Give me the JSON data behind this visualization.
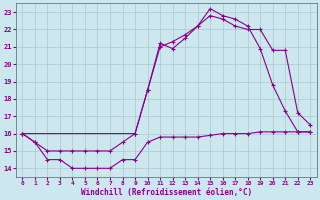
{
  "xlabel": "Windchill (Refroidissement éolien,°C)",
  "bg_color": "#cce8ee",
  "grid_color": "#aac8cc",
  "line_color": "#880088",
  "xlim": [
    -0.5,
    23.5
  ],
  "ylim": [
    13.5,
    23.5
  ],
  "yticks": [
    14,
    15,
    16,
    17,
    18,
    19,
    20,
    21,
    22,
    23
  ],
  "xticks": [
    0,
    1,
    2,
    3,
    4,
    5,
    6,
    7,
    8,
    9,
    10,
    11,
    12,
    13,
    14,
    15,
    16,
    17,
    18,
    19,
    20,
    21,
    22,
    23
  ],
  "line1_x": [
    0,
    1,
    2,
    3,
    4,
    5,
    6,
    7,
    8,
    9,
    10,
    11,
    12,
    13,
    14,
    15,
    16,
    17,
    18,
    19,
    20,
    21,
    22,
    23
  ],
  "line1_y": [
    16.0,
    15.5,
    14.5,
    14.5,
    14.0,
    14.0,
    14.0,
    14.0,
    14.5,
    14.5,
    15.5,
    15.8,
    15.8,
    15.8,
    15.8,
    15.9,
    16.0,
    16.0,
    16.0,
    16.1,
    16.1,
    16.1,
    16.1,
    16.1
  ],
  "line2_x": [
    0,
    1,
    2,
    3,
    4,
    5,
    6,
    7,
    8,
    9,
    10,
    11,
    12,
    13,
    14,
    15,
    16,
    17,
    18,
    19,
    20,
    21,
    22,
    23
  ],
  "line2_y": [
    16.0,
    15.5,
    15.0,
    15.0,
    15.0,
    15.0,
    15.0,
    15.0,
    15.5,
    16.0,
    18.5,
    21.2,
    20.9,
    21.5,
    22.2,
    23.2,
    22.8,
    22.6,
    22.2,
    20.9,
    18.8,
    17.3,
    16.1,
    16.1
  ],
  "line3_x": [
    0,
    9,
    10,
    11,
    12,
    13,
    14,
    15,
    16,
    17,
    18,
    19,
    20,
    21,
    22,
    23
  ],
  "line3_y": [
    16.0,
    16.0,
    18.5,
    21.0,
    21.3,
    21.7,
    22.2,
    22.8,
    22.6,
    22.2,
    22.0,
    22.0,
    20.8,
    20.8,
    17.2,
    16.5
  ]
}
